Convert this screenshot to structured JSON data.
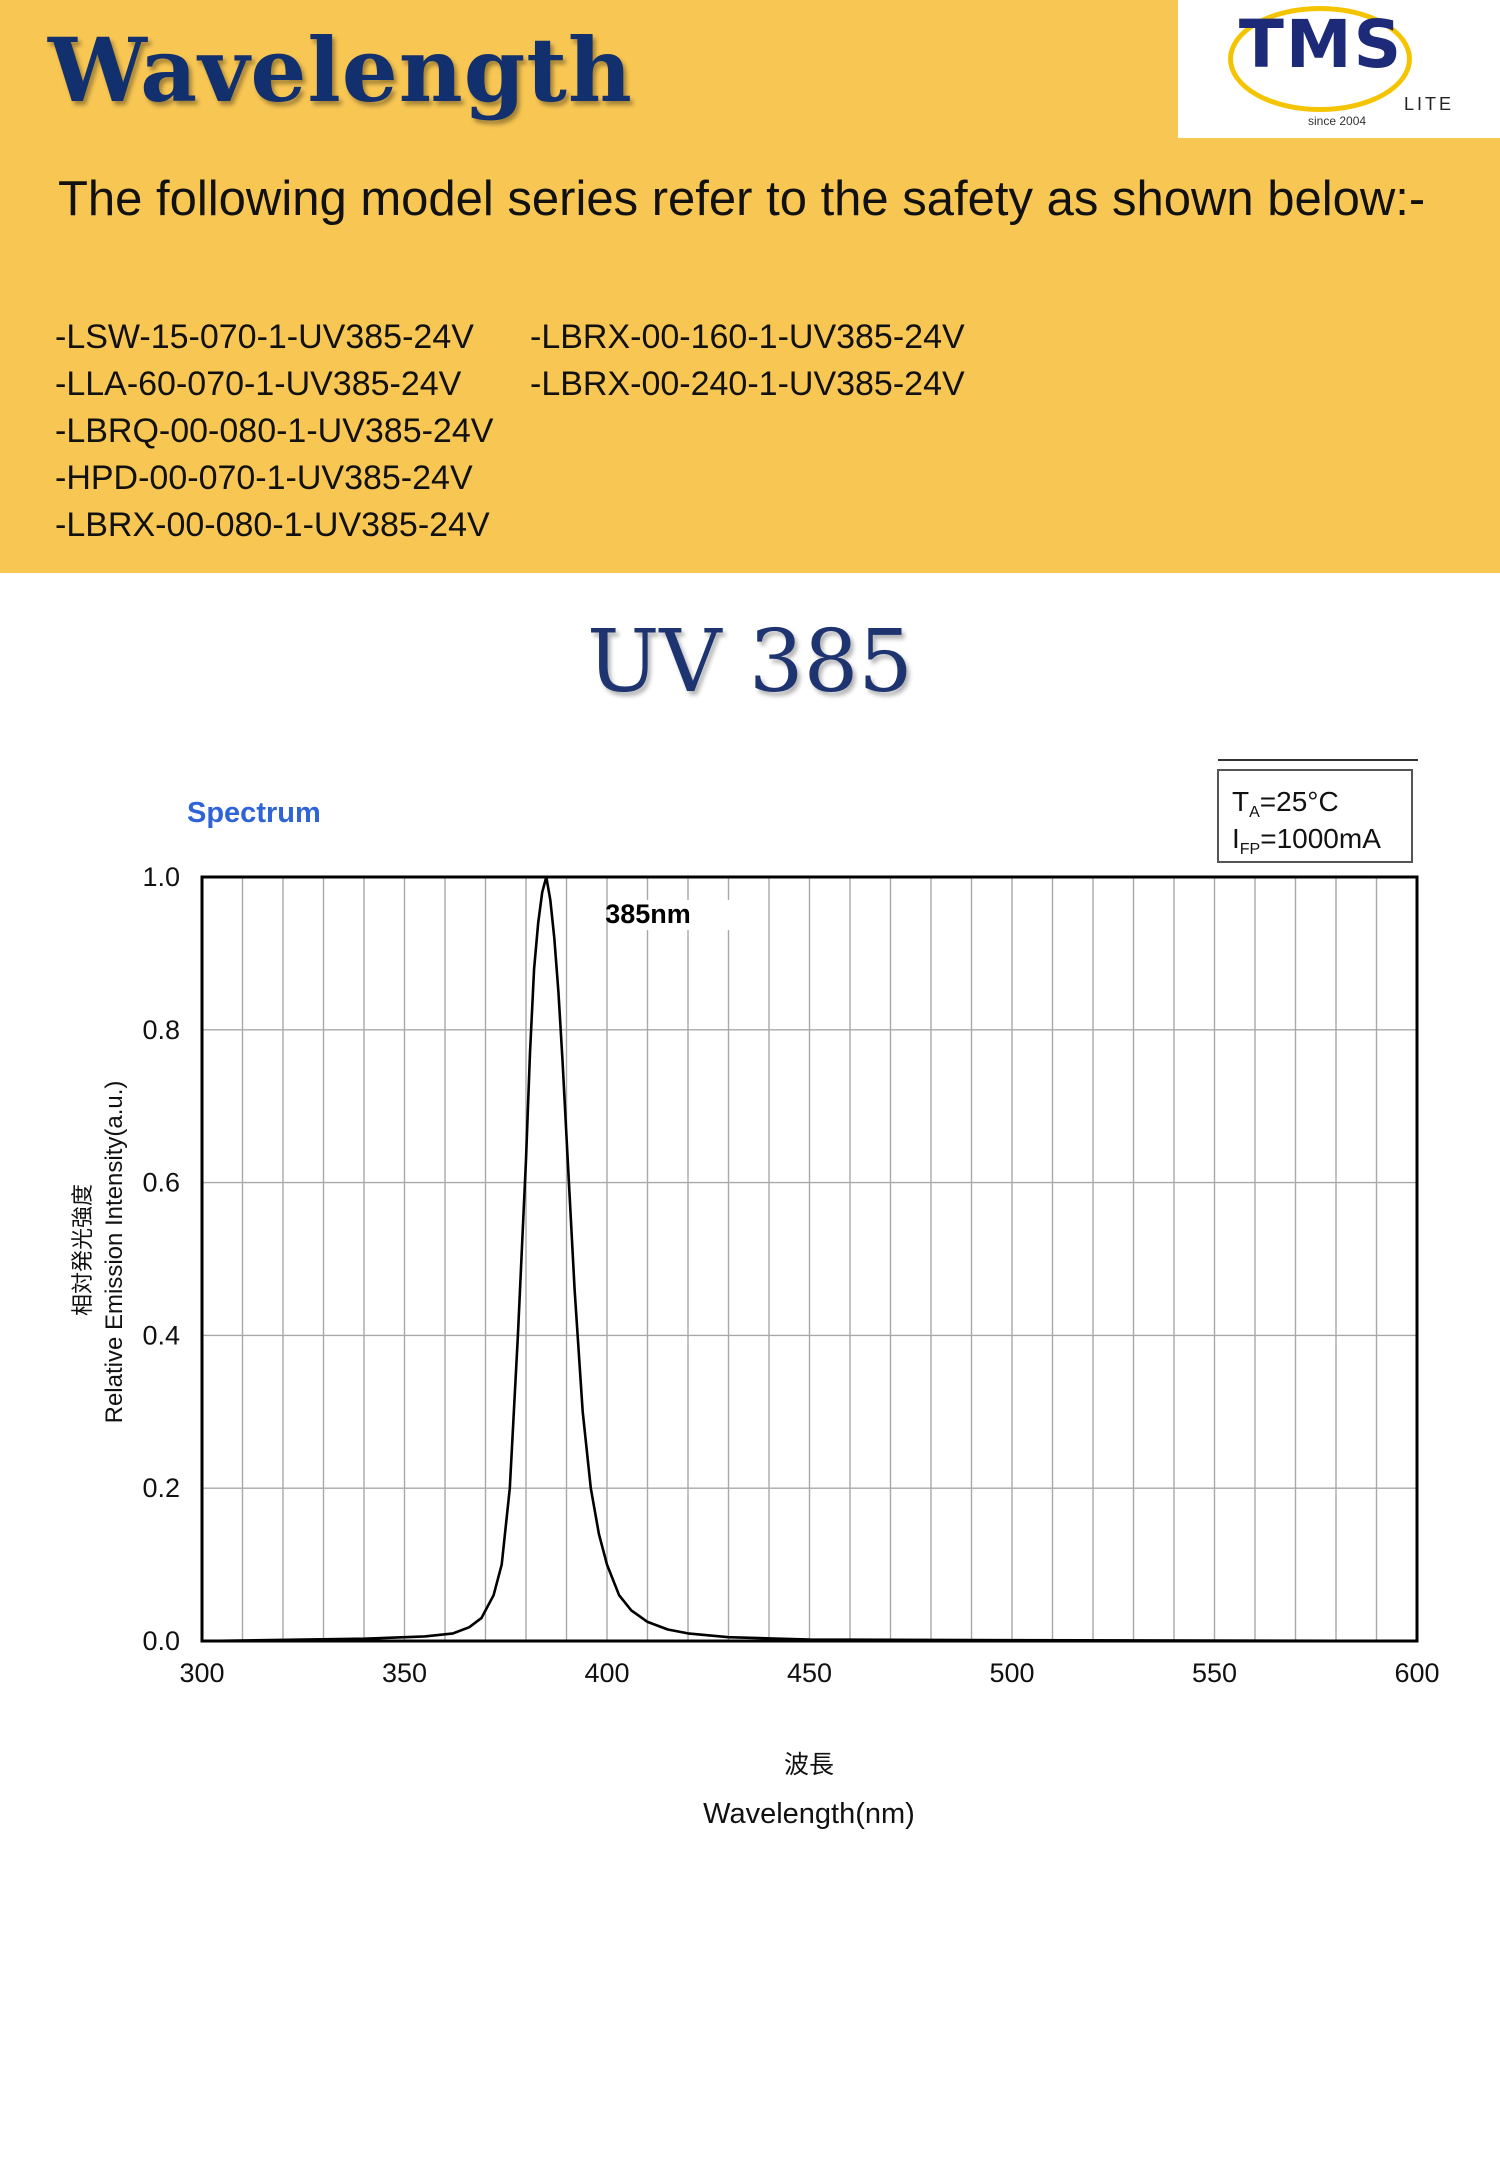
{
  "header": {
    "title": "Wavelength",
    "logo": {
      "brand": "TMS",
      "sub": "LITE",
      "since": "since 2004"
    },
    "intro": "The following model series refer to the safety as shown below:-",
    "models_col1": [
      "-LSW-15-070-1-UV385-24V",
      "-LLA-60-070-1-UV385-24V",
      "-LBRQ-00-080-1-UV385-24V",
      "-HPD-00-070-1-UV385-24V",
      "-LBRX-00-080-1-UV385-24V"
    ],
    "models_col2": [
      "-LBRX-00-160-1-UV385-24V",
      "-LBRX-00-240-1-UV385-24V"
    ]
  },
  "subtitle": "UV 385",
  "chart_data": {
    "type": "line",
    "title": "Spectrum",
    "peak_label": "385nm",
    "conditions": {
      "ta": "=25°C",
      "ifp": "=1000mA"
    },
    "xlabel_cn": "波長",
    "xlabel": "Wavelength(nm)",
    "ylabel_cn": "相対発光強度",
    "ylabel": "Relative Emission Intensity(a.u.)",
    "xlim": [
      300,
      600
    ],
    "ylim": [
      0,
      1.0
    ],
    "x_ticks": [
      "300",
      "350",
      "400",
      "450",
      "500",
      "550",
      "600"
    ],
    "y_ticks": [
      "0.0",
      "0.2",
      "0.4",
      "0.6",
      "0.8",
      "1.0"
    ],
    "grid": true,
    "colors": {
      "header_bg": "#f8c653",
      "title": "#13306e",
      "spectrum_title": "#2e64d8",
      "line": "#000000"
    },
    "series": [
      {
        "x": [
          300,
          340,
          355,
          362,
          366,
          369,
          372,
          374,
          376,
          378,
          380,
          381,
          382,
          383,
          384,
          385,
          386,
          387,
          388,
          389,
          390,
          392,
          394,
          396,
          398,
          400,
          403,
          406,
          410,
          415,
          420,
          430,
          450,
          500,
          600
        ],
        "values": [
          0.0,
          0.003,
          0.006,
          0.01,
          0.018,
          0.03,
          0.06,
          0.1,
          0.2,
          0.4,
          0.63,
          0.77,
          0.88,
          0.94,
          0.98,
          1.0,
          0.97,
          0.92,
          0.85,
          0.76,
          0.66,
          0.46,
          0.3,
          0.2,
          0.14,
          0.1,
          0.06,
          0.04,
          0.025,
          0.015,
          0.01,
          0.005,
          0.002,
          0.001,
          0.0
        ]
      }
    ]
  }
}
